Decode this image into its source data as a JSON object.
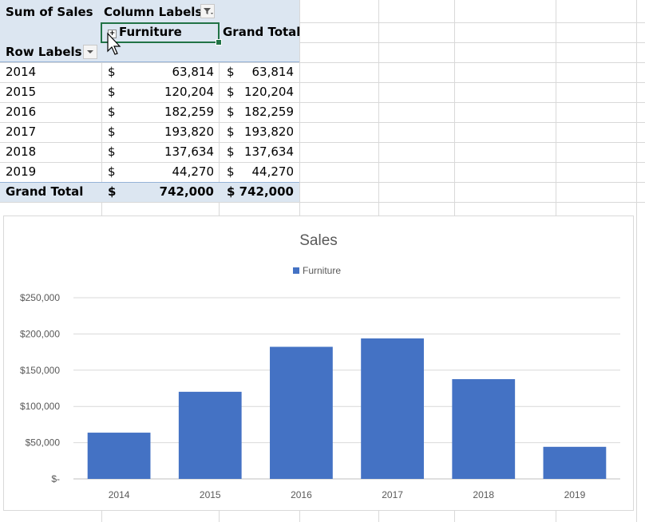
{
  "pivot": {
    "header_value": "Sum of Sales",
    "column_labels": "Column Labels",
    "row_labels": "Row Labels",
    "col_category": "Furniture",
    "grand_total_col": "Grand Total",
    "currency": "$",
    "rows": [
      {
        "year": "2014",
        "furniture": "63,814",
        "total": "63,814"
      },
      {
        "year": "2015",
        "furniture": "120,204",
        "total": "120,204"
      },
      {
        "year": "2016",
        "furniture": "182,259",
        "total": "182,259"
      },
      {
        "year": "2017",
        "furniture": "193,820",
        "total": "193,820"
      },
      {
        "year": "2018",
        "furniture": "137,634",
        "total": "137,634"
      },
      {
        "year": "2019",
        "furniture": "44,270",
        "total": "44,270"
      }
    ],
    "grand_total_row": {
      "label": "Grand Total",
      "furniture": "742,000",
      "total": "742,000"
    }
  },
  "chart_data": {
    "type": "bar",
    "title": "Sales",
    "categories": [
      "2014",
      "2015",
      "2016",
      "2017",
      "2018",
      "2019"
    ],
    "series": [
      {
        "name": "Furniture",
        "values": [
          63814,
          120204,
          182259,
          193820,
          137634,
          44270
        ],
        "color": "#4472c4"
      }
    ],
    "ylim": [
      0,
      250000
    ],
    "yticks": [
      "$-",
      "$50,000",
      "$100,000",
      "$150,000",
      "$200,000",
      "$250,000"
    ],
    "ytick_values": [
      0,
      50000,
      100000,
      150000,
      200000,
      250000
    ],
    "legend": "top",
    "grid": true
  },
  "colors": {
    "pivot_header": "#dce6f1",
    "selection": "#217346",
    "bar": "#4472c4"
  }
}
